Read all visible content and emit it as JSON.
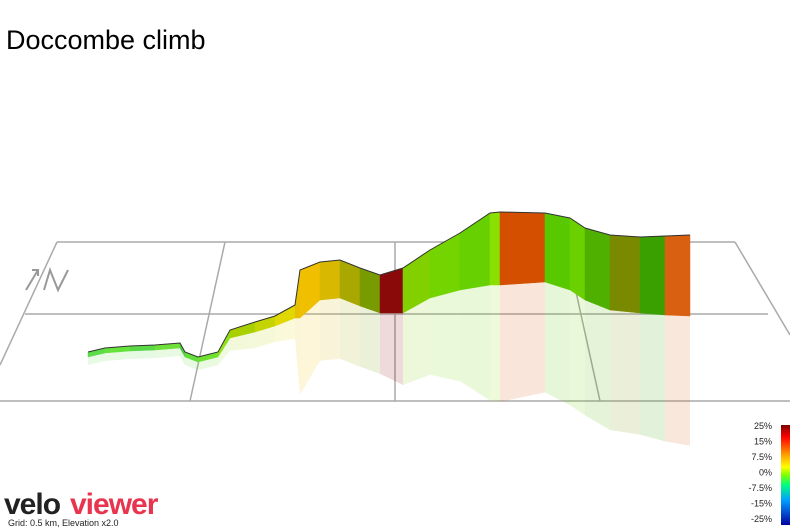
{
  "header": {
    "title": "Doccombe climb"
  },
  "footer": {
    "logo_left": "velo",
    "logo_right": "viewer",
    "note": "Grid: 0.5 km, Elevation x2.0"
  },
  "legend": {
    "labels": [
      "25%",
      "15%",
      "7.5%",
      "0%",
      "-7.5%",
      "-15%",
      "-25%"
    ]
  }
}
